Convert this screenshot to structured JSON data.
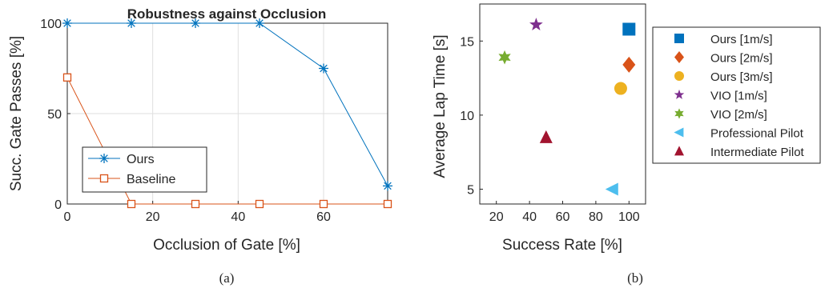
{
  "chart_data": [
    {
      "type": "line",
      "title": "Robustness against Occlusion",
      "xlabel": "Occlusion of Gate [%]",
      "ylabel": "Succ. Gate Passes [%]",
      "xlim": [
        0,
        75
      ],
      "ylim": [
        0,
        100
      ],
      "xticks": [
        "0",
        "20",
        "40",
        "60"
      ],
      "yticks": [
        "0",
        "50",
        "100"
      ],
      "grid": true,
      "legend_position": "bottom-left",
      "caption": "(a)",
      "series": [
        {
          "name": "Ours",
          "marker": "asterisk",
          "color": "#0072BD",
          "points": [
            [
              0,
              100
            ],
            [
              15,
              100
            ],
            [
              30,
              100
            ],
            [
              45,
              100
            ],
            [
              60,
              75
            ],
            [
              75,
              10
            ]
          ]
        },
        {
          "name": "Baseline",
          "marker": "square-open",
          "color": "#D95319",
          "points": [
            [
              0,
              70
            ],
            [
              15,
              0
            ],
            [
              30,
              0
            ],
            [
              45,
              0
            ],
            [
              60,
              0
            ],
            [
              75,
              0
            ]
          ]
        }
      ]
    },
    {
      "type": "scatter",
      "xlabel": "Success Rate [%]",
      "ylabel": "Average Lap Time [s]",
      "xlim": [
        10,
        110
      ],
      "ylim": [
        4,
        17.5
      ],
      "xticks": [
        "20",
        "40",
        "60",
        "80",
        "100"
      ],
      "yticks": [
        "5",
        "10",
        "15"
      ],
      "grid": false,
      "legend_position": "outside-right",
      "caption": "(b)",
      "series": [
        {
          "name": "Ours [1m/s]",
          "marker": "square",
          "color": "#0072BD",
          "x": 100,
          "y": 15.8
        },
        {
          "name": "Ours [2m/s]",
          "marker": "diamond",
          "color": "#D95319",
          "x": 100,
          "y": 13.4
        },
        {
          "name": "Ours [3m/s]",
          "marker": "circle",
          "color": "#EDB120",
          "x": 95,
          "y": 11.8
        },
        {
          "name": "VIO [1m/s]",
          "marker": "star5",
          "color": "#7E2F8E",
          "x": 44,
          "y": 16.1
        },
        {
          "name": "VIO [2m/s]",
          "marker": "star6",
          "color": "#77AC30",
          "x": 25,
          "y": 13.9
        },
        {
          "name": "Professional Pilot",
          "marker": "triangle-left",
          "color": "#4DBEEE",
          "x": 90,
          "y": 5.0
        },
        {
          "name": "Intermediate Pilot",
          "marker": "triangle-up",
          "color": "#A2142F",
          "x": 50,
          "y": 8.5
        }
      ]
    }
  ]
}
